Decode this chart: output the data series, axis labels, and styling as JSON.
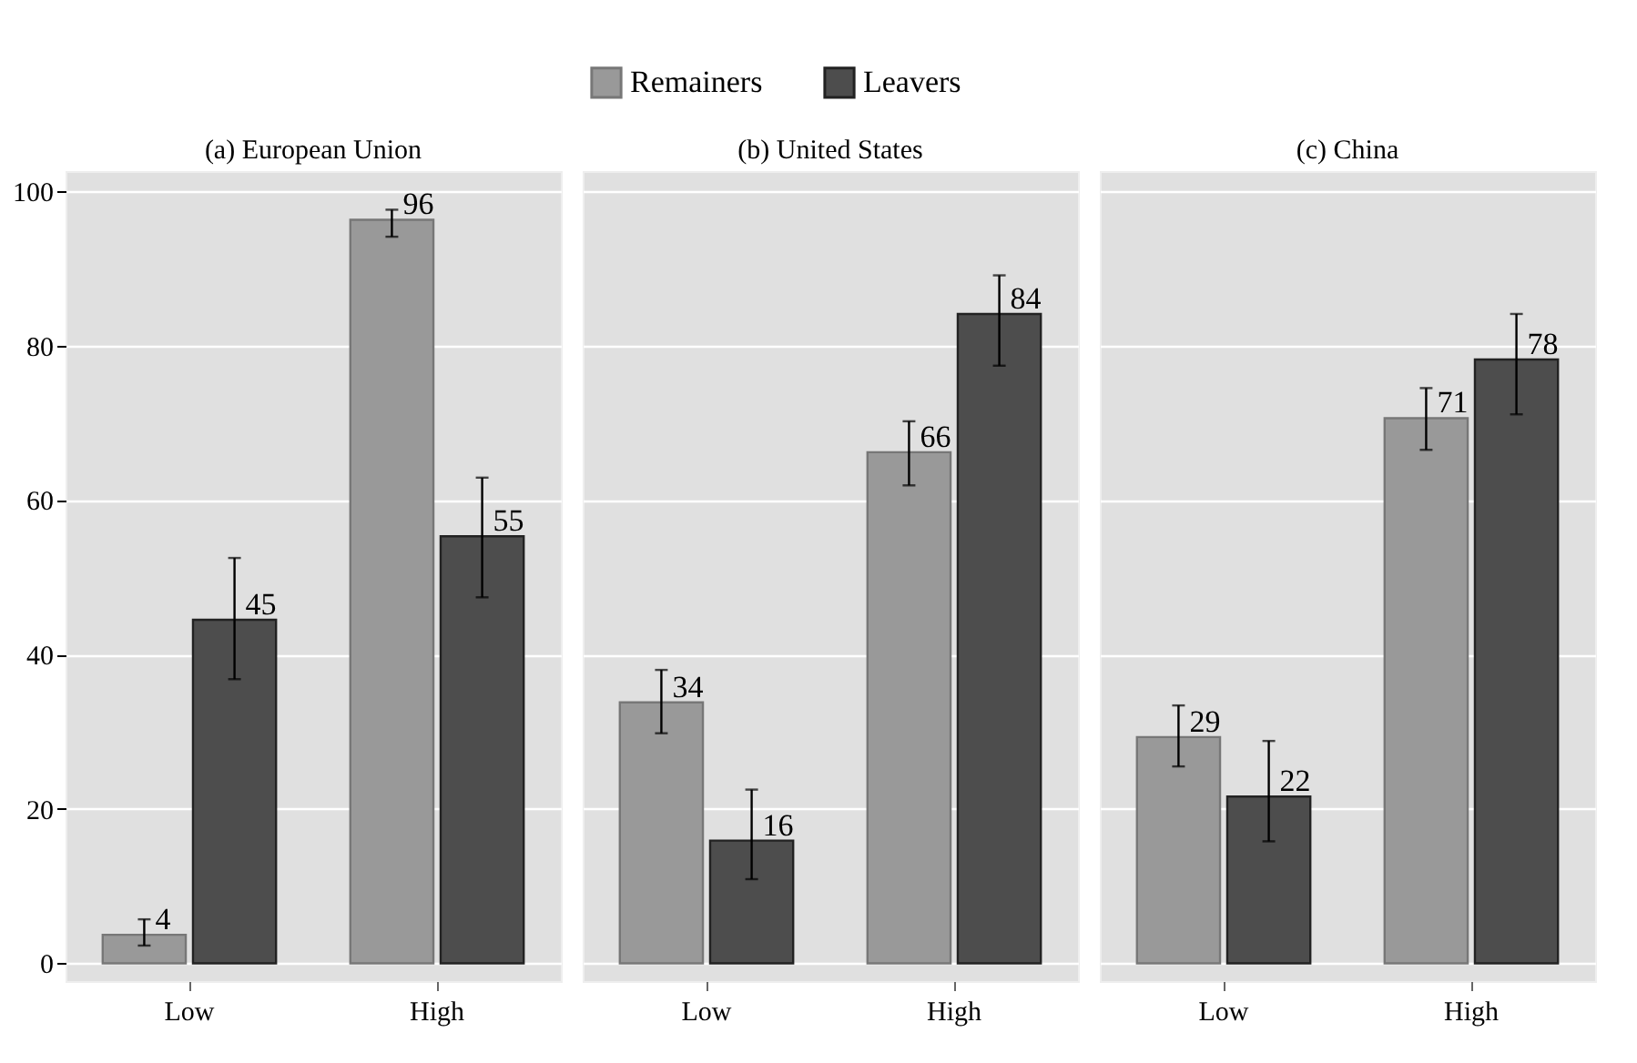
{
  "chart_data": [
    {
      "type": "bar",
      "title": "(a) European Union",
      "categories": [
        "Low",
        "High"
      ],
      "ylim": [
        -2.3,
        102.6
      ],
      "yticks": [
        0,
        20,
        40,
        60,
        80,
        100
      ],
      "grid": "y",
      "legend": "top",
      "series": [
        {
          "name": "Remainers",
          "color": "#999999",
          "values": [
            3.7,
            96.3
          ],
          "errors": [
            [
              2.3,
              5.7
            ],
            [
              94.1,
              97.6
            ]
          ],
          "value_labels": [
            "4",
            "96"
          ]
        },
        {
          "name": "Leavers",
          "color": "#4d4d4d",
          "values": [
            44.5,
            55.3
          ],
          "errors": [
            [
              36.8,
              52.5
            ],
            [
              47.4,
              62.9
            ]
          ],
          "value_labels": [
            "45",
            "55"
          ]
        }
      ]
    },
    {
      "type": "bar",
      "title": "(b) United States",
      "categories": [
        "Low",
        "High"
      ],
      "ylim": [
        -2.3,
        102.6
      ],
      "yticks": [
        0,
        20,
        40,
        60,
        80,
        100
      ],
      "grid": "y",
      "tick_labels": "x",
      "series": [
        {
          "color": "#999999",
          "values": [
            33.8,
            66.2
          ],
          "errors": [
            [
              29.8,
              38.0
            ],
            [
              61.9,
              70.2
            ]
          ],
          "value_labels": [
            "34",
            "66"
          ]
        },
        {
          "color": "#4d4d4d",
          "values": [
            15.9,
            84.1
          ],
          "errors": [
            [
              10.9,
              22.5
            ],
            [
              77.4,
              89.1
            ]
          ],
          "value_labels": [
            "16",
            "84"
          ]
        }
      ]
    },
    {
      "type": "bar",
      "title": "(c) China",
      "categories": [
        "Low",
        "High"
      ],
      "ylim": [
        -2.3,
        102.6
      ],
      "yticks": [
        0,
        20,
        40,
        60,
        80,
        100
      ],
      "grid": "y",
      "tick_labels": "x",
      "series": [
        {
          "color": "#999999",
          "values": [
            29.3,
            70.6
          ],
          "errors": [
            [
              25.5,
              33.4
            ],
            [
              66.5,
              74.5
            ]
          ],
          "value_labels": [
            "29",
            "71"
          ]
        },
        {
          "color": "#4d4d4d",
          "values": [
            21.6,
            78.2
          ],
          "errors": [
            [
              15.8,
              28.8
            ],
            [
              71.1,
              84.1
            ]
          ],
          "value_labels": [
            "22",
            "78"
          ]
        }
      ]
    }
  ]
}
